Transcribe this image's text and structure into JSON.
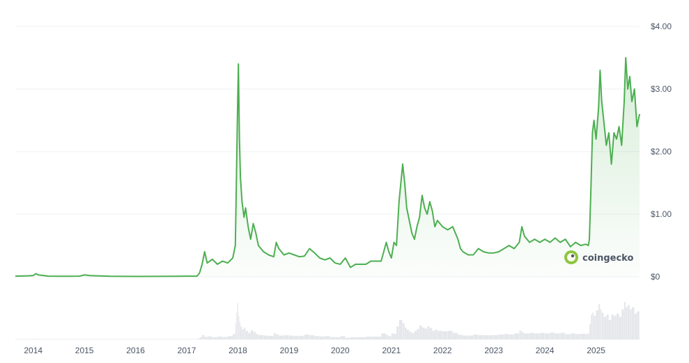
{
  "chart_data": {
    "type": "area",
    "y_unit": "USD",
    "ylim": [
      0,
      4
    ],
    "y_ticks": [
      {
        "value": 4,
        "label": "$4.00"
      },
      {
        "value": 3,
        "label": "$3.00"
      },
      {
        "value": 2,
        "label": "$2.00"
      },
      {
        "value": 1,
        "label": "$1.00"
      },
      {
        "value": 0,
        "label": "$0"
      }
    ],
    "x_range": [
      2013.65,
      2025.85
    ],
    "x_ticks": [
      {
        "value": 2014,
        "label": "2014"
      },
      {
        "value": 2015,
        "label": "2015"
      },
      {
        "value": 2016,
        "label": "2016"
      },
      {
        "value": 2017,
        "label": "2017"
      },
      {
        "value": 2018,
        "label": "2018"
      },
      {
        "value": 2019,
        "label": "2019"
      },
      {
        "value": 2020,
        "label": "2020"
      },
      {
        "value": 2021,
        "label": "2021"
      },
      {
        "value": 2022,
        "label": "2022"
      },
      {
        "value": 2023,
        "label": "2023"
      },
      {
        "value": 2024,
        "label": "2024"
      },
      {
        "value": 2025,
        "label": "2025"
      }
    ],
    "grid": true,
    "line_color": "#4caf50",
    "fill_color": "#e8f5e9",
    "volume_color": "#e5e7eb",
    "series": [
      {
        "points": [
          [
            2013.65,
            0.01
          ],
          [
            2013.9,
            0.015
          ],
          [
            2014.0,
            0.02
          ],
          [
            2014.05,
            0.05
          ],
          [
            2014.1,
            0.03
          ],
          [
            2014.3,
            0.01
          ],
          [
            2014.6,
            0.008
          ],
          [
            2014.9,
            0.01
          ],
          [
            2015.0,
            0.03
          ],
          [
            2015.1,
            0.02
          ],
          [
            2015.5,
            0.008
          ],
          [
            2016.0,
            0.006
          ],
          [
            2016.5,
            0.007
          ],
          [
            2017.0,
            0.01
          ],
          [
            2017.2,
            0.01
          ],
          [
            2017.25,
            0.06
          ],
          [
            2017.3,
            0.2
          ],
          [
            2017.35,
            0.4
          ],
          [
            2017.4,
            0.22
          ],
          [
            2017.5,
            0.28
          ],
          [
            2017.6,
            0.2
          ],
          [
            2017.7,
            0.25
          ],
          [
            2017.8,
            0.22
          ],
          [
            2017.9,
            0.3
          ],
          [
            2017.95,
            0.5
          ],
          [
            2017.97,
            1.5
          ],
          [
            2017.99,
            2.5
          ],
          [
            2018.01,
            3.4
          ],
          [
            2018.03,
            2.2
          ],
          [
            2018.05,
            1.6
          ],
          [
            2018.08,
            1.2
          ],
          [
            2018.12,
            0.95
          ],
          [
            2018.15,
            1.1
          ],
          [
            2018.2,
            0.8
          ],
          [
            2018.25,
            0.6
          ],
          [
            2018.3,
            0.85
          ],
          [
            2018.35,
            0.7
          ],
          [
            2018.4,
            0.5
          ],
          [
            2018.5,
            0.4
          ],
          [
            2018.6,
            0.35
          ],
          [
            2018.7,
            0.32
          ],
          [
            2018.75,
            0.55
          ],
          [
            2018.8,
            0.45
          ],
          [
            2018.9,
            0.35
          ],
          [
            2019.0,
            0.38
          ],
          [
            2019.1,
            0.35
          ],
          [
            2019.2,
            0.32
          ],
          [
            2019.3,
            0.33
          ],
          [
            2019.4,
            0.45
          ],
          [
            2019.5,
            0.38
          ],
          [
            2019.6,
            0.3
          ],
          [
            2019.7,
            0.27
          ],
          [
            2019.8,
            0.3
          ],
          [
            2019.9,
            0.22
          ],
          [
            2020.0,
            0.2
          ],
          [
            2020.1,
            0.3
          ],
          [
            2020.2,
            0.15
          ],
          [
            2020.3,
            0.2
          ],
          [
            2020.5,
            0.2
          ],
          [
            2020.6,
            0.25
          ],
          [
            2020.8,
            0.25
          ],
          [
            2020.9,
            0.55
          ],
          [
            2020.95,
            0.4
          ],
          [
            2021.0,
            0.3
          ],
          [
            2021.05,
            0.55
          ],
          [
            2021.1,
            0.5
          ],
          [
            2021.15,
            1.2
          ],
          [
            2021.22,
            1.8
          ],
          [
            2021.26,
            1.5
          ],
          [
            2021.3,
            1.1
          ],
          [
            2021.35,
            0.9
          ],
          [
            2021.4,
            0.7
          ],
          [
            2021.45,
            0.6
          ],
          [
            2021.5,
            0.8
          ],
          [
            2021.55,
            0.95
          ],
          [
            2021.6,
            1.3
          ],
          [
            2021.65,
            1.1
          ],
          [
            2021.7,
            1.0
          ],
          [
            2021.75,
            1.2
          ],
          [
            2021.8,
            1.05
          ],
          [
            2021.85,
            0.8
          ],
          [
            2021.9,
            0.9
          ],
          [
            2022.0,
            0.8
          ],
          [
            2022.1,
            0.75
          ],
          [
            2022.2,
            0.8
          ],
          [
            2022.3,
            0.6
          ],
          [
            2022.35,
            0.45
          ],
          [
            2022.4,
            0.4
          ],
          [
            2022.5,
            0.35
          ],
          [
            2022.6,
            0.35
          ],
          [
            2022.7,
            0.45
          ],
          [
            2022.8,
            0.4
          ],
          [
            2022.9,
            0.38
          ],
          [
            2023.0,
            0.38
          ],
          [
            2023.1,
            0.4
          ],
          [
            2023.2,
            0.45
          ],
          [
            2023.3,
            0.5
          ],
          [
            2023.4,
            0.45
          ],
          [
            2023.5,
            0.55
          ],
          [
            2023.55,
            0.8
          ],
          [
            2023.6,
            0.65
          ],
          [
            2023.7,
            0.55
          ],
          [
            2023.8,
            0.6
          ],
          [
            2023.9,
            0.55
          ],
          [
            2024.0,
            0.6
          ],
          [
            2024.1,
            0.55
          ],
          [
            2024.2,
            0.62
          ],
          [
            2024.3,
            0.55
          ],
          [
            2024.4,
            0.6
          ],
          [
            2024.5,
            0.48
          ],
          [
            2024.6,
            0.55
          ],
          [
            2024.7,
            0.5
          ],
          [
            2024.8,
            0.52
          ],
          [
            2024.85,
            0.5
          ],
          [
            2024.87,
            0.6
          ],
          [
            2024.9,
            1.4
          ],
          [
            2024.93,
            2.3
          ],
          [
            2024.96,
            2.5
          ],
          [
            2025.0,
            2.2
          ],
          [
            2025.05,
            2.7
          ],
          [
            2025.08,
            3.3
          ],
          [
            2025.11,
            2.8
          ],
          [
            2025.15,
            2.5
          ],
          [
            2025.2,
            2.1
          ],
          [
            2025.25,
            2.3
          ],
          [
            2025.3,
            1.8
          ],
          [
            2025.35,
            2.3
          ],
          [
            2025.4,
            2.2
          ],
          [
            2025.45,
            2.4
          ],
          [
            2025.5,
            2.1
          ],
          [
            2025.55,
            2.8
          ],
          [
            2025.58,
            3.5
          ],
          [
            2025.62,
            3.0
          ],
          [
            2025.66,
            3.2
          ],
          [
            2025.7,
            2.8
          ],
          [
            2025.75,
            3.0
          ],
          [
            2025.8,
            2.4
          ],
          [
            2025.85,
            2.6
          ]
        ]
      }
    ]
  },
  "watermark": {
    "brand_text": "coingecko",
    "icon": "gecko-logo-icon"
  }
}
